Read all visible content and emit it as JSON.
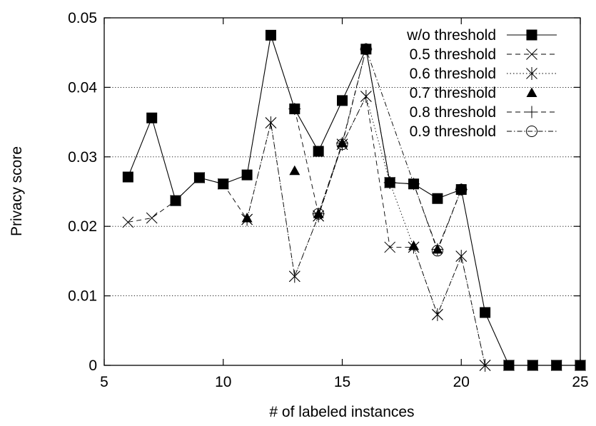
{
  "chart_data": {
    "type": "line",
    "title": "",
    "xlabel": "# of labeled instances",
    "ylabel": "Privacy score",
    "xlim": [
      5,
      25
    ],
    "ylim": [
      0,
      0.05
    ],
    "x_ticks": [
      "5",
      "10",
      "15",
      "20",
      "25"
    ],
    "y_ticks": [
      "0",
      "0.01",
      "0.02",
      "0.03",
      "0.04",
      "0.05"
    ],
    "grid": "horizontal dotted",
    "legend_position": "top-right",
    "series": [
      {
        "name": "w/o threshold",
        "marker": "filled-square",
        "line": "solid",
        "points": [
          [
            6,
            0.0271
          ],
          [
            7,
            0.0356
          ],
          [
            8,
            0.0237
          ],
          [
            9,
            0.027
          ],
          [
            10,
            0.0261
          ],
          [
            11,
            0.0274
          ],
          [
            12,
            0.0475
          ],
          [
            13,
            0.0369
          ],
          [
            14,
            0.0308
          ],
          [
            15,
            0.0381
          ],
          [
            16,
            0.0455
          ],
          [
            17,
            0.0263
          ],
          [
            18,
            0.0261
          ],
          [
            19,
            0.024
          ],
          [
            20,
            0.0253
          ],
          [
            21,
            0.0076
          ],
          [
            22,
            0
          ],
          [
            23,
            0
          ],
          [
            24,
            0
          ],
          [
            25,
            0
          ]
        ]
      },
      {
        "name": "0.5 threshold",
        "marker": "x",
        "line": "dashed",
        "points": [
          [
            6,
            0.0206
          ],
          [
            7,
            0.0212
          ],
          [
            8,
            0.0237
          ],
          [
            9,
            0.027
          ],
          [
            10,
            0.0261
          ],
          [
            11,
            0.021
          ],
          [
            12,
            0.0349
          ],
          [
            13,
            0.0128
          ],
          [
            14,
            0.0215
          ],
          [
            15,
            0.0318
          ],
          [
            16,
            0.0387
          ],
          [
            17,
            0.017
          ],
          [
            18,
            0.017
          ],
          [
            19,
            0.0073
          ],
          [
            20,
            0.0157
          ],
          [
            21,
            0
          ],
          [
            22,
            0
          ],
          [
            23,
            0
          ],
          [
            24,
            0
          ],
          [
            25,
            0
          ]
        ]
      },
      {
        "name": "0.6 threshold",
        "marker": "asterisk",
        "line": "dotted",
        "points": [
          [
            11,
            0.021
          ],
          [
            12,
            0.0349
          ],
          [
            13,
            0.0128
          ],
          [
            14,
            0.0215
          ],
          [
            15,
            0.0318
          ],
          [
            16,
            0.0387
          ],
          [
            17,
            0.0263
          ],
          [
            18,
            0.017
          ],
          [
            19,
            0.0073
          ],
          [
            20,
            0.0157
          ],
          [
            21,
            0
          ]
        ]
      },
      {
        "name": "0.7 threshold",
        "marker": "filled-triangle",
        "line": "none",
        "points": [
          [
            11,
            0.0212
          ],
          [
            13,
            0.028
          ],
          [
            14,
            0.0218
          ],
          [
            15,
            0.032
          ],
          [
            18,
            0.0172
          ],
          [
            19,
            0.0167
          ]
        ]
      },
      {
        "name": "0.8 threshold",
        "marker": "plus",
        "line": "dashed",
        "points": [
          [
            13,
            0.0369
          ],
          [
            14,
            0.0218
          ],
          [
            15,
            0.032
          ],
          [
            16,
            0.0455
          ],
          [
            17,
            0.0263
          ],
          [
            18,
            0.0261
          ],
          [
            19,
            0.0167
          ],
          [
            20,
            0.0253
          ]
        ]
      },
      {
        "name": "0.9 threshold",
        "marker": "open-circle",
        "line": "dash-dot",
        "points": [
          [
            14,
            0.0218
          ],
          [
            15,
            0.0318
          ],
          [
            16,
            0.0455
          ],
          [
            19,
            0.0165
          ],
          [
            20,
            0.0253
          ]
        ]
      }
    ]
  }
}
